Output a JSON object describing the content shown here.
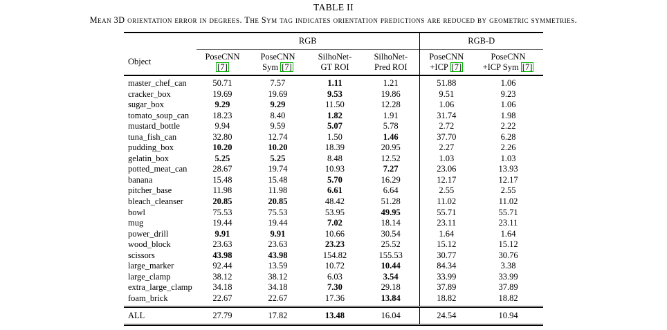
{
  "title": "TABLE II",
  "caption": "Mean 3D orientation error in degrees. The Sym tag indicates orientation predictions are reduced by geometric symmetries.",
  "colors": {
    "citation_box_green": "#00b400",
    "rule_black": "#000000"
  },
  "table": {
    "groups": [
      {
        "label": "RGB",
        "span": 4
      },
      {
        "label": "RGB-D",
        "span": 2
      }
    ],
    "object_header": "Object",
    "columns": [
      {
        "line1": "PoseCNN",
        "line2": "",
        "cite": "[7]"
      },
      {
        "line1": "PoseCNN",
        "line2": "Sym",
        "cite": "[7]"
      },
      {
        "line1": "SilhoNet-",
        "line2": "GT ROI",
        "cite": ""
      },
      {
        "line1": "SilhoNet-",
        "line2": "Pred ROI",
        "cite": ""
      },
      {
        "line1": "PoseCNN",
        "line2": "+ICP",
        "cite": "[7]"
      },
      {
        "line1": "PoseCNN",
        "line2": "+ICP Sym",
        "cite": "[7]"
      }
    ],
    "rows": [
      {
        "object": "master_chef_can",
        "values": [
          "50.71",
          "7.57",
          "1.11",
          "1.21",
          "51.88",
          "1.06"
        ],
        "bold": [
          2
        ]
      },
      {
        "object": "cracker_box",
        "values": [
          "19.69",
          "19.69",
          "9.53",
          "19.86",
          "9.51",
          "9.23"
        ],
        "bold": [
          2
        ]
      },
      {
        "object": "sugar_box",
        "values": [
          "9.29",
          "9.29",
          "11.50",
          "12.28",
          "1.06",
          "1.06"
        ],
        "bold": [
          0,
          1
        ]
      },
      {
        "object": "tomato_soup_can",
        "values": [
          "18.23",
          "8.40",
          "1.82",
          "1.91",
          "31.74",
          "1.98"
        ],
        "bold": [
          2
        ]
      },
      {
        "object": "mustard_bottle",
        "values": [
          "9.94",
          "9.59",
          "5.07",
          "5.78",
          "2.72",
          "2.22"
        ],
        "bold": [
          2
        ]
      },
      {
        "object": "tuna_fish_can",
        "values": [
          "32.80",
          "12.74",
          "1.50",
          "1.46",
          "37.70",
          "6.28"
        ],
        "bold": [
          3
        ]
      },
      {
        "object": "pudding_box",
        "values": [
          "10.20",
          "10.20",
          "18.39",
          "20.95",
          "2.27",
          "2.26"
        ],
        "bold": [
          0,
          1
        ]
      },
      {
        "object": "gelatin_box",
        "values": [
          "5.25",
          "5.25",
          "8.48",
          "12.52",
          "1.03",
          "1.03"
        ],
        "bold": [
          0,
          1
        ]
      },
      {
        "object": "potted_meat_can",
        "values": [
          "28.67",
          "19.74",
          "10.93",
          "7.27",
          "23.06",
          "13.93"
        ],
        "bold": [
          3
        ]
      },
      {
        "object": "banana",
        "values": [
          "15.48",
          "15.48",
          "5.70",
          "16.29",
          "12.17",
          "12.17"
        ],
        "bold": [
          2
        ]
      },
      {
        "object": "pitcher_base",
        "values": [
          "11.98",
          "11.98",
          "6.61",
          "6.64",
          "2.55",
          "2.55"
        ],
        "bold": [
          2
        ]
      },
      {
        "object": "bleach_cleanser",
        "values": [
          "20.85",
          "20.85",
          "48.42",
          "51.28",
          "11.02",
          "11.02"
        ],
        "bold": [
          0,
          1
        ]
      },
      {
        "object": "bowl",
        "values": [
          "75.53",
          "75.53",
          "53.95",
          "49.95",
          "55.71",
          "55.71"
        ],
        "bold": [
          3
        ]
      },
      {
        "object": "mug",
        "values": [
          "19.44",
          "19.44",
          "7.02",
          "18.14",
          "23.11",
          "23.11"
        ],
        "bold": [
          2
        ]
      },
      {
        "object": "power_drill",
        "values": [
          "9.91",
          "9.91",
          "10.66",
          "30.54",
          "1.64",
          "1.64"
        ],
        "bold": [
          0,
          1
        ]
      },
      {
        "object": "wood_block",
        "values": [
          "23.63",
          "23.63",
          "23.23",
          "25.52",
          "15.12",
          "15.12"
        ],
        "bold": [
          2
        ]
      },
      {
        "object": "scissors",
        "values": [
          "43.98",
          "43.98",
          "154.82",
          "155.53",
          "30.77",
          "30.76"
        ],
        "bold": [
          0,
          1
        ]
      },
      {
        "object": "large_marker",
        "values": [
          "92.44",
          "13.59",
          "10.72",
          "10.44",
          "84.34",
          "3.38"
        ],
        "bold": [
          3
        ]
      },
      {
        "object": "large_clamp",
        "values": [
          "38.12",
          "38.12",
          "6.03",
          "3.54",
          "33.99",
          "33.99"
        ],
        "bold": [
          3
        ]
      },
      {
        "object": "extra_large_clamp",
        "values": [
          "34.18",
          "34.18",
          "7.30",
          "29.18",
          "37.89",
          "37.89"
        ],
        "bold": [
          2
        ]
      },
      {
        "object": "foam_brick",
        "values": [
          "22.67",
          "22.67",
          "17.36",
          "13.84",
          "18.82",
          "18.82"
        ],
        "bold": [
          3
        ]
      }
    ],
    "summary": {
      "object": "ALL",
      "values": [
        "27.79",
        "17.82",
        "13.48",
        "16.04",
        "24.54",
        "10.94"
      ],
      "bold": [
        2
      ]
    }
  }
}
